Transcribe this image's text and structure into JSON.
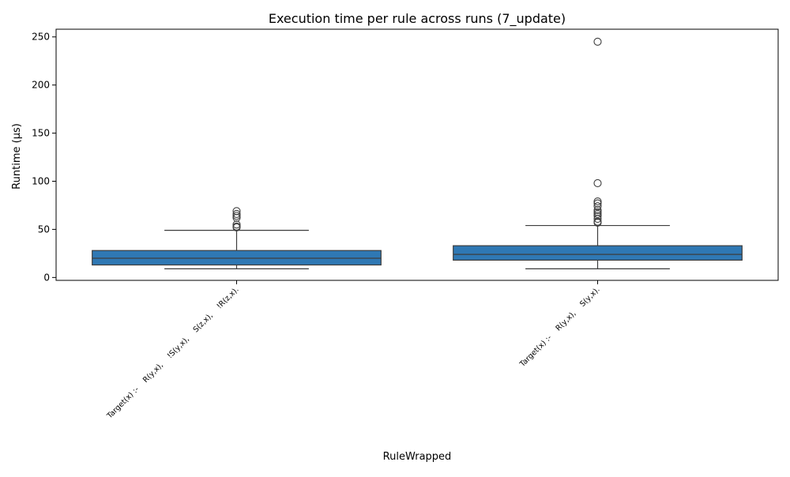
{
  "chart_data": {
    "type": "box",
    "title": "Execution time per rule across runs (7_update)",
    "xlabel": "RuleWrapped",
    "ylabel": "Runtime (µs)",
    "ylim": [
      -3,
      258
    ],
    "yticks": [
      0,
      50,
      100,
      150,
      200,
      250
    ],
    "grid": false,
    "legend": "none",
    "box_color": "#2f78b4",
    "edge_color": "#3d3d3d",
    "categories": [
      "Target(x) :-    R(y,x),    !S(y,x),    S(z,x),    !R(z,x).",
      "Target(x) :-    R(y,x),    S(y,x)."
    ],
    "boxes": [
      {
        "whisker_low": 9,
        "q1": 13,
        "median": 20,
        "q3": 28,
        "whisker_high": 49,
        "outliers": [
          52,
          53,
          55,
          62,
          64,
          66,
          69
        ]
      },
      {
        "whisker_low": 9,
        "q1": 18,
        "median": 24,
        "q3": 33,
        "whisker_high": 54,
        "outliers": [
          57,
          58,
          61,
          64,
          66,
          68,
          70,
          74,
          77,
          79,
          98,
          245
        ]
      }
    ]
  }
}
